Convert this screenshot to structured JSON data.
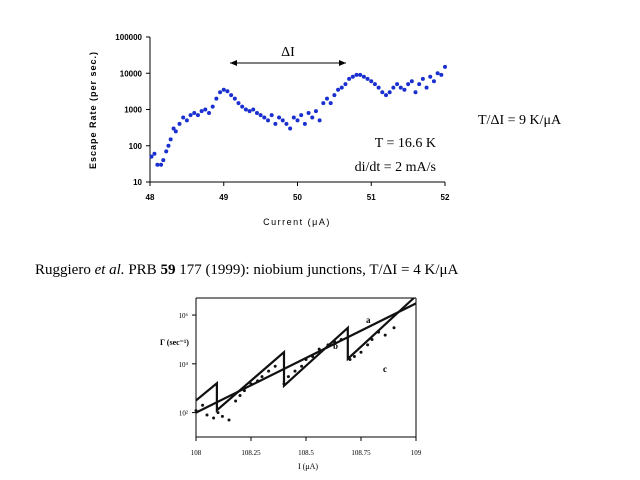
{
  "chart_data": [
    {
      "type": "scatter",
      "ylog": true,
      "color": "#1a2fd0",
      "xlabel": "Current (μA)",
      "ylabel": "Escape Rate (per sec.)",
      "annotations": [
        "ΔI",
        "T = 16.6 K",
        "di/dt = 2 mA/s",
        "T/ΔI = 9 K/μA"
      ],
      "xlim": [
        48,
        52
      ],
      "xticks": [
        48,
        49,
        50,
        51,
        52
      ],
      "ylim": [
        10,
        100000
      ],
      "yticks": [
        10,
        100,
        1000,
        10000,
        100000
      ],
      "series": [
        {
          "type": "scatter",
          "x": [
            48.02,
            48.06,
            48.1,
            48.15,
            48.18,
            48.22,
            48.25,
            48.28,
            48.32,
            48.35,
            48.4,
            48.45,
            48.5,
            48.55,
            48.6,
            48.65,
            48.7,
            48.75,
            48.8,
            48.85,
            48.9,
            48.95,
            49.0,
            49.05,
            49.1,
            49.15,
            49.2,
            49.25,
            49.3,
            49.35,
            49.4,
            49.45,
            49.5,
            49.55,
            49.6,
            49.65,
            49.7,
            49.75,
            49.8,
            49.85,
            49.9,
            49.95,
            50.0,
            50.05,
            50.1,
            50.15,
            50.2,
            50.25,
            50.3,
            50.35,
            50.4,
            50.45,
            50.5,
            50.55,
            50.6,
            50.65,
            50.7,
            50.75,
            50.8,
            50.85,
            50.9,
            50.95,
            51.0,
            51.05,
            51.1,
            51.15,
            51.2,
            51.25,
            51.3,
            51.35,
            51.4,
            51.45,
            51.5,
            51.55,
            51.6,
            51.65,
            51.7,
            51.75,
            51.8,
            51.85,
            51.9,
            51.95,
            52.0
          ],
          "values": [
            50,
            60,
            30,
            30,
            40,
            70,
            100,
            150,
            300,
            250,
            400,
            600,
            500,
            700,
            800,
            700,
            900,
            1000,
            800,
            1200,
            2000,
            3000,
            3500,
            3200,
            2500,
            2000,
            1500,
            1200,
            1000,
            900,
            1000,
            800,
            700,
            600,
            500,
            700,
            400,
            600,
            500,
            400,
            300,
            600,
            500,
            700,
            400,
            800,
            600,
            900,
            500,
            1500,
            2000,
            1500,
            2500,
            3500,
            4000,
            5000,
            7000,
            8000,
            9000,
            9000,
            8000,
            7000,
            6000,
            5000,
            4000,
            3000,
            2500,
            3000,
            4000,
            5000,
            4000,
            3500,
            5000,
            6000,
            3000,
            5000,
            7000,
            4000,
            8000,
            6000,
            10000,
            9000,
            15000
          ]
        }
      ]
    },
    {
      "type": "scatter",
      "ylog": true,
      "color": "#111111",
      "title_parts": [
        "Ruggiero ",
        "et al.",
        " PRB ",
        "59",
        " 177 (1999): niobium junctions, T/ΔI = 4 K/μA"
      ],
      "xlabel": "I (μA)",
      "ylabel": "Γ (sec⁻¹)",
      "annotations": [
        "a",
        "b",
        "c"
      ],
      "xlim": [
        108,
        109
      ],
      "xticks": [
        108,
        108.25,
        108.5,
        108.75,
        109
      ],
      "ylim": [
        10,
        5000000
      ],
      "yticks": [
        {
          "value": 100,
          "label": "10²"
        },
        {
          "value": 10000,
          "label": "10⁴"
        },
        {
          "value": 1000000,
          "label": "10⁶"
        }
      ],
      "series": [
        {
          "type": "line",
          "x": [
            108,
            108.095,
            108.095,
            108.4,
            108.4,
            108.69,
            108.69,
            108.99
          ],
          "values": [
            316,
            1600,
            126,
            30000,
            1260,
            300000,
            16000,
            5000000
          ]
        },
        {
          "type": "line",
          "x": [
            108,
            109
          ],
          "values": [
            100,
            3000000
          ]
        },
        {
          "type": "scatter",
          "x": [
            108.0,
            108.03,
            108.05,
            108.08,
            108.1,
            108.12,
            108.15,
            108.18,
            108.2,
            108.22,
            108.25,
            108.28,
            108.3,
            108.33,
            108.36,
            108.4,
            108.42,
            108.45,
            108.48,
            108.5,
            108.53,
            108.56,
            108.6,
            108.63,
            108.66,
            108.7,
            108.72,
            108.75,
            108.78,
            108.8,
            108.83,
            108.86,
            108.9
          ],
          "values": [
            120,
            200,
            80,
            60,
            100,
            70,
            50,
            300,
            500,
            800,
            1500,
            2000,
            3000,
            5000,
            8000,
            1500,
            3000,
            5000,
            8000,
            15000,
            20000,
            40000,
            60000,
            80000,
            100000,
            15000,
            20000,
            30000,
            60000,
            100000,
            200000,
            150000,
            300000
          ]
        }
      ]
    }
  ]
}
